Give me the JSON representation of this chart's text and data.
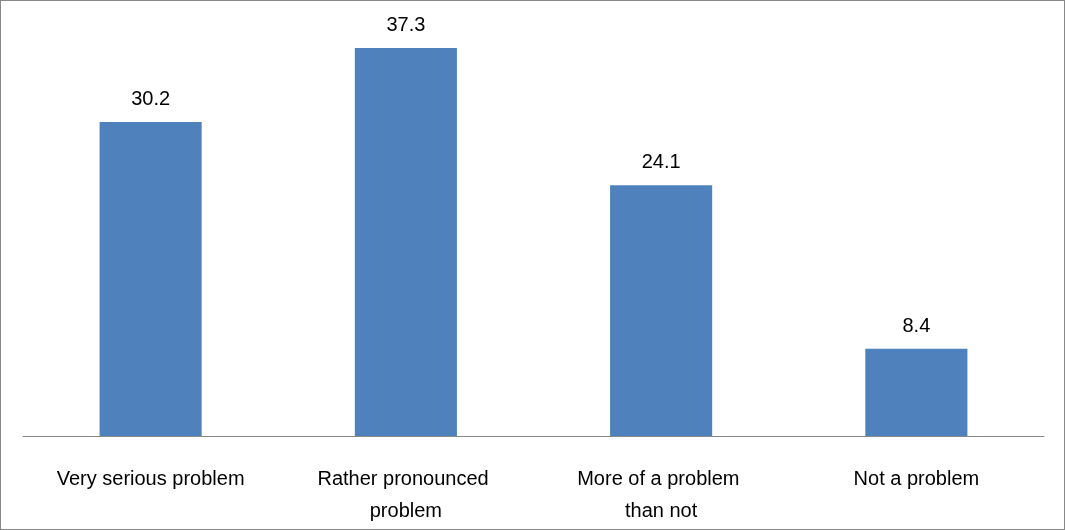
{
  "chart_data": {
    "type": "bar",
    "categories": [
      "Very serious problem",
      "Rather pronounced problem",
      "More of a problem than not",
      "Not a problem"
    ],
    "values": [
      30.2,
      37.3,
      24.1,
      8.4
    ],
    "color": "#4f81bd",
    "data_labels": true
  }
}
